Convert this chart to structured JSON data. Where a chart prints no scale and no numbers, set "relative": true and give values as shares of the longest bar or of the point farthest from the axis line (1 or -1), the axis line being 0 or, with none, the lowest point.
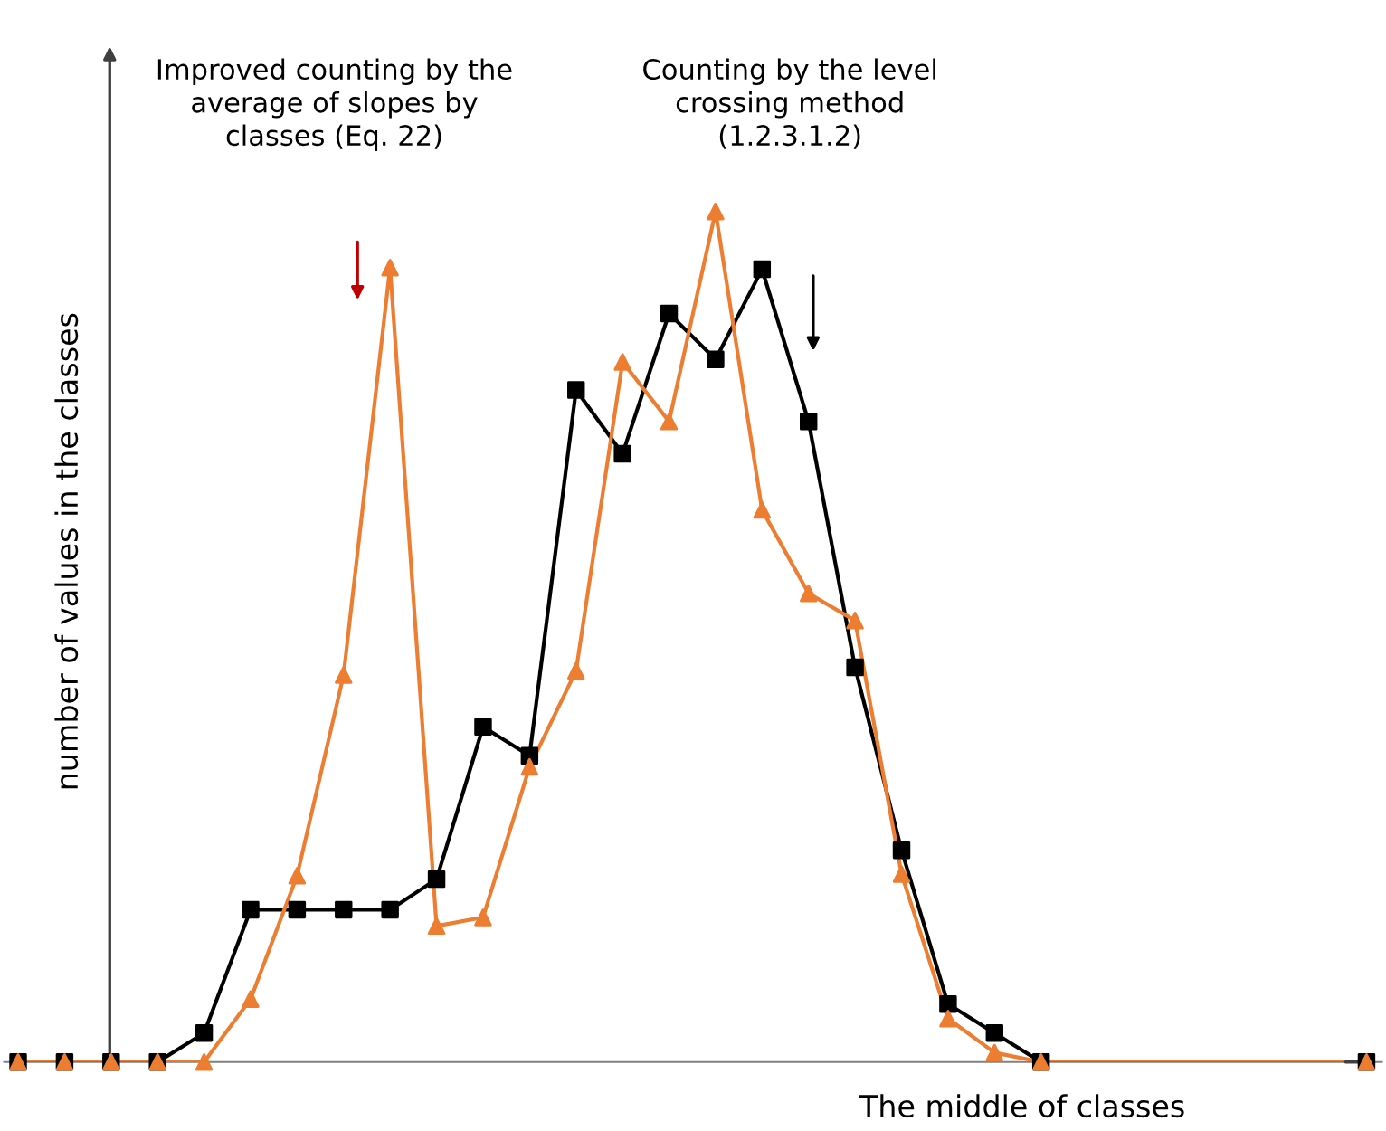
{
  "chart_data": {
    "type": "line",
    "relative": true,
    "xlabel": "The middle of classes",
    "ylabel": "number of values in the classes",
    "categories": [
      null,
      null,
      null,
      null,
      null,
      null,
      null,
      null,
      null,
      null,
      null,
      null,
      null,
      null,
      null,
      null,
      null,
      null,
      null,
      null,
      null,
      null,
      null,
      null,
      null,
      null,
      null,
      null,
      null,
      null
    ],
    "series": [
      {
        "color": "#000000",
        "marker": "square",
        "values": [
          0,
          0,
          0,
          0,
          0.034,
          0.179,
          0.179,
          0.179,
          0.179,
          0.215,
          0.394,
          0.36,
          0.79,
          0.715,
          0.88,
          0.826,
          0.932,
          0.753,
          0.464,
          0.249,
          0.068,
          0.034,
          0,
          null,
          null,
          null,
          null,
          null,
          null,
          0
        ]
      },
      {
        "color": "#ed7d31",
        "marker": "triangle",
        "values": [
          0,
          0,
          0,
          0,
          0,
          0.074,
          0.219,
          0.455,
          0.934,
          0.16,
          0.17,
          0.347,
          0.46,
          0.823,
          0.753,
          1,
          0.649,
          0.551,
          0.519,
          0.221,
          0.051,
          0.011,
          0,
          null,
          null,
          null,
          null,
          null,
          null,
          0
        ]
      }
    ],
    "annotations": [
      "Improved counting by the\naverage of slopes by\nclasses (Eq. 22)",
      "Counting by the level\ncrossing method\n(1.2.3.1.2)"
    ],
    "grid": false,
    "legend": false
  }
}
